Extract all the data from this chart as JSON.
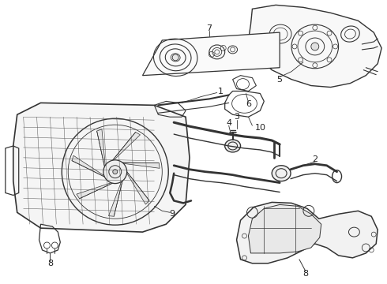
{
  "bg_color": "#ffffff",
  "line_color": "#333333",
  "label_color": "#222222",
  "fig_width": 4.9,
  "fig_height": 3.6,
  "dpi": 100
}
